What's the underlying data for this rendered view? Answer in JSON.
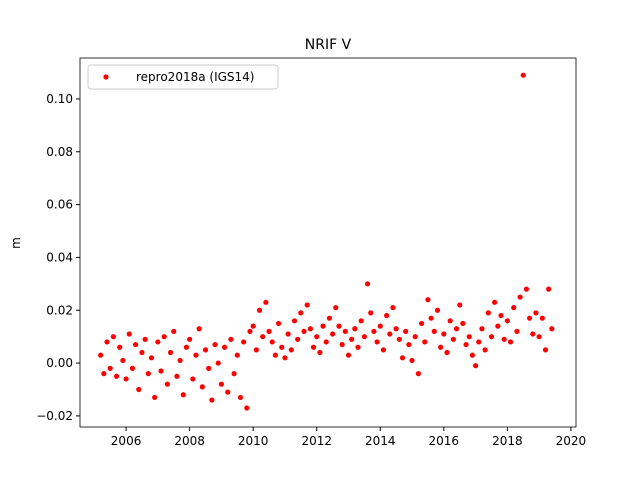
{
  "chart_data": {
    "type": "scatter",
    "title": "NRIF V",
    "y_label": "m",
    "xlim": [
      2004.55,
      2020.16
    ],
    "xticks": [
      2006,
      2008,
      2010,
      2012,
      2014,
      2016,
      2018,
      2020
    ],
    "ylim": [
      -0.0242,
      0.1155
    ],
    "yticks": [
      {
        "value": -0.02,
        "label": "−0.02"
      },
      {
        "value": 0,
        "label": "0.00"
      },
      {
        "value": 0.02,
        "label": "0.02"
      },
      {
        "value": 0.04,
        "label": "0.04"
      },
      {
        "value": 0.06,
        "label": "0.06"
      },
      {
        "value": 0.08,
        "label": "0.08"
      },
      {
        "value": 0.1,
        "label": "0.10"
      }
    ],
    "legend": "upper left",
    "x": [
      2005.2,
      2005.3,
      2005.4,
      2005.5,
      2005.6,
      2005.7,
      2005.8,
      2005.9,
      2006.0,
      2006.1,
      2006.2,
      2006.3,
      2006.4,
      2006.5,
      2006.6,
      2006.7,
      2006.8,
      2006.9,
      2007.0,
      2007.1,
      2007.2,
      2007.3,
      2007.4,
      2007.5,
      2007.6,
      2007.7,
      2007.8,
      2007.9,
      2008.0,
      2008.1,
      2008.2,
      2008.3,
      2008.4,
      2008.5,
      2008.6,
      2008.7,
      2008.8,
      2008.9,
      2009.0,
      2009.1,
      2009.2,
      2009.3,
      2009.4,
      2009.5,
      2009.6,
      2009.7,
      2009.8,
      2009.9,
      2010.0,
      2010.1,
      2010.2,
      2010.3,
      2010.4,
      2010.5,
      2010.6,
      2010.7,
      2010.8,
      2010.9,
      2011.0,
      2011.1,
      2011.2,
      2011.3,
      2011.4,
      2011.5,
      2011.6,
      2011.7,
      2011.8,
      2011.9,
      2012.0,
      2012.1,
      2012.2,
      2012.3,
      2012.4,
      2012.5,
      2012.6,
      2012.7,
      2012.8,
      2012.9,
      2013.0,
      2013.1,
      2013.2,
      2013.3,
      2013.4,
      2013.5,
      2013.6,
      2013.7,
      2013.8,
      2013.9,
      2014.0,
      2014.1,
      2014.2,
      2014.3,
      2014.4,
      2014.5,
      2014.6,
      2014.7,
      2014.8,
      2014.9,
      2015.0,
      2015.1,
      2015.2,
      2015.3,
      2015.4,
      2015.5,
      2015.6,
      2015.7,
      2015.8,
      2015.9,
      2016.0,
      2016.1,
      2016.2,
      2016.3,
      2016.4,
      2016.5,
      2016.6,
      2016.7,
      2016.8,
      2016.9,
      2017.0,
      2017.1,
      2017.2,
      2017.3,
      2017.4,
      2017.5,
      2017.6,
      2017.7,
      2017.8,
      2017.9,
      2018.0,
      2018.1,
      2018.2,
      2018.3,
      2018.4,
      2018.5,
      2018.6,
      2018.7,
      2018.8,
      2018.9,
      2019.0,
      2019.1,
      2019.2,
      2019.3,
      2019.4
    ],
    "series": [
      {
        "name": "repro2018a (IGS14)",
        "color": "#ff0000",
        "values": [
          0.003,
          -0.004,
          0.008,
          -0.002,
          0.01,
          -0.005,
          0.006,
          0.001,
          -0.006,
          0.011,
          -0.002,
          0.007,
          -0.01,
          0.004,
          0.009,
          -0.004,
          0.002,
          -0.013,
          0.008,
          -0.003,
          0.01,
          -0.008,
          0.004,
          0.012,
          -0.005,
          0.001,
          -0.012,
          0.006,
          0.009,
          -0.006,
          0.003,
          0.013,
          -0.009,
          0.005,
          -0.002,
          -0.014,
          0.007,
          0.0,
          -0.008,
          0.006,
          -0.011,
          0.009,
          -0.004,
          0.003,
          -0.013,
          0.008,
          -0.017,
          0.012,
          0.014,
          0.005,
          0.02,
          0.01,
          0.023,
          0.012,
          0.008,
          0.003,
          0.015,
          0.006,
          0.002,
          0.011,
          0.005,
          0.016,
          0.009,
          0.019,
          0.012,
          0.022,
          0.013,
          0.006,
          0.01,
          0.004,
          0.014,
          0.008,
          0.017,
          0.011,
          0.021,
          0.014,
          0.007,
          0.012,
          0.003,
          0.009,
          0.013,
          0.006,
          0.016,
          0.01,
          0.03,
          0.019,
          0.012,
          0.008,
          0.014,
          0.005,
          0.018,
          0.011,
          0.021,
          0.013,
          0.009,
          0.002,
          0.012,
          0.007,
          0.001,
          0.01,
          -0.004,
          0.015,
          0.008,
          0.024,
          0.017,
          0.012,
          0.02,
          0.006,
          0.011,
          0.004,
          0.016,
          0.009,
          0.013,
          0.022,
          0.015,
          0.007,
          0.01,
          0.003,
          -0.001,
          0.008,
          0.013,
          0.005,
          0.019,
          0.01,
          0.023,
          0.014,
          0.018,
          0.009,
          0.016,
          0.008,
          0.021,
          0.012,
          0.025,
          0.109,
          0.028,
          0.017,
          0.011,
          0.019,
          0.01,
          0.017,
          0.005,
          0.028,
          0.013
        ]
      }
    ]
  }
}
